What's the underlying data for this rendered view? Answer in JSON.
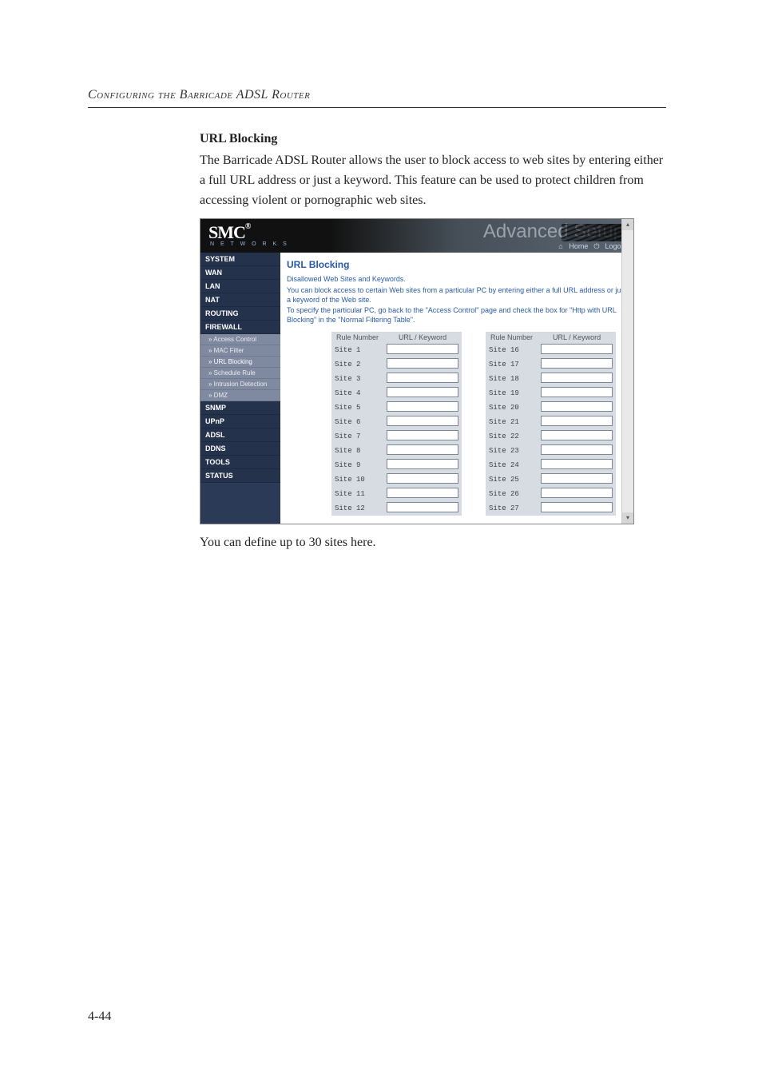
{
  "page": {
    "running_head": "Configuring the Barricade ADSL Router",
    "page_number": "4-44",
    "section_title": "URL Blocking",
    "paragraph": "The Barricade ADSL Router allows the user to block access to web sites by entering either a full URL address or just a keyword. This feature can be used to protect children from accessing violent or pornographic web sites.",
    "caption": "You can define up to 30 sites here.",
    "colors": {
      "rule": "#333333",
      "router_header_dark": "#111111",
      "router_header_light": "#5a6470",
      "sidebar_bg": "#2b3a57",
      "sidebar_cat_bg": "#24324c",
      "sidebar_sub_bg": "#7f8aa0",
      "content_title": "#2a5aa5",
      "table_bg": "#d7dce3",
      "input_border": "#7a869a"
    }
  },
  "router": {
    "logo_main": "SMC",
    "logo_reg": "®",
    "logo_sub": "N E T W O R K S",
    "adv_label": "Advanced Setup",
    "top_links": {
      "home": "Home",
      "logout": "Logout"
    },
    "sidebar": {
      "categories": [
        {
          "label": "SYSTEM",
          "subs": []
        },
        {
          "label": "WAN",
          "subs": []
        },
        {
          "label": "LAN",
          "subs": []
        },
        {
          "label": "NAT",
          "subs": []
        },
        {
          "label": "ROUTING",
          "subs": []
        },
        {
          "label": "FIREWALL",
          "subs": [
            "» Access Control",
            "» MAC Filter",
            "» URL Blocking",
            "» Schedule Rule",
            "» Intrusion Detection",
            "» DMZ"
          ]
        },
        {
          "label": "SNMP",
          "subs": []
        },
        {
          "label": "UPnP",
          "subs": []
        },
        {
          "label": "ADSL",
          "subs": []
        },
        {
          "label": "DDNS",
          "subs": []
        },
        {
          "label": "TOOLS",
          "subs": []
        },
        {
          "label": "STATUS",
          "subs": []
        }
      ]
    },
    "content": {
      "title": "URL Blocking",
      "desc1": "Disallowed Web Sites and Keywords.",
      "desc2": "You can block access to certain Web sites from a particular PC by entering either a full URL address or just a keyword of the Web site.",
      "desc3": "To specify the particular PC, go back to the \"Access Control\" page and check the box for \"Http with URL Blocking\" in the \"Normal Filtering Table\".",
      "table_headers": {
        "rule": "Rule Number",
        "key": "URL / Keyword"
      },
      "left_rows": [
        "Site 1",
        "Site 2",
        "Site 3",
        "Site 4",
        "Site 5",
        "Site 6",
        "Site 7",
        "Site 8",
        "Site 9",
        "Site 10",
        "Site 11",
        "Site 12"
      ],
      "right_rows": [
        "Site 16",
        "Site 17",
        "Site 18",
        "Site 19",
        "Site 20",
        "Site 21",
        "Site 22",
        "Site 23",
        "Site 24",
        "Site 25",
        "Site 26",
        "Site 27"
      ]
    }
  }
}
